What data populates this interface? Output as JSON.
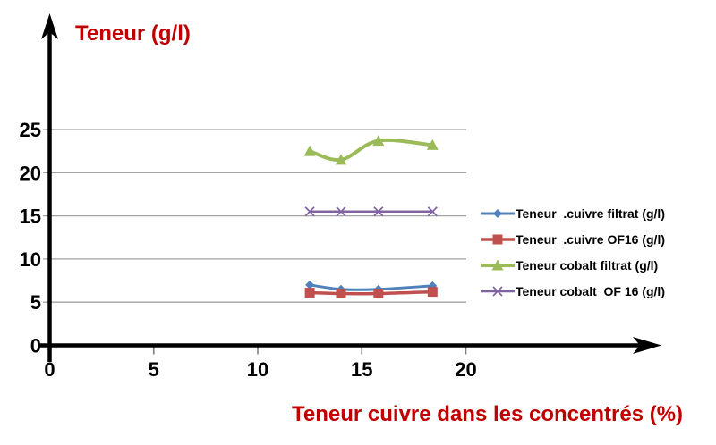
{
  "chart_data": {
    "type": "line",
    "title": "Teneur (g/l)",
    "xlabel": "Teneur cuivre dans les concentrés (%)",
    "ylabel": "",
    "x_ticks": [
      0,
      5,
      10,
      15,
      20
    ],
    "y_ticks": [
      0,
      5,
      10,
      15,
      20,
      25
    ],
    "xlim": [
      0,
      20
    ],
    "ylim": [
      0,
      25
    ],
    "grid": "horizontal",
    "legend_position": "right",
    "x": [
      12.5,
      14,
      15.8,
      18.4
    ],
    "series": [
      {
        "name": "Teneur  .cuivre filtrat (g/l)",
        "marker": "diamond",
        "color": "#4F81BD",
        "values": [
          7.0,
          6.5,
          6.5,
          6.9
        ]
      },
      {
        "name": "Teneur  .cuivre OF16 (g/l)",
        "marker": "square",
        "color": "#C0504D",
        "values": [
          6.1,
          6.0,
          6.0,
          6.2
        ]
      },
      {
        "name": "Teneur cobalt filtrat (g/l)",
        "marker": "triangle",
        "color": "#9BBB59",
        "values": [
          22.5,
          21.5,
          23.7,
          23.2
        ]
      },
      {
        "name": "Teneur cobalt  OF 16 (g/l)",
        "marker": "x",
        "color": "#8064A2",
        "values": [
          15.5,
          15.5,
          15.5,
          15.5
        ]
      }
    ],
    "colors": {
      "label": "#C00000",
      "axis": "#000000",
      "tick_label": "#000000",
      "gridline": "#A3A3A3",
      "tick": "#7F7F7F"
    }
  }
}
